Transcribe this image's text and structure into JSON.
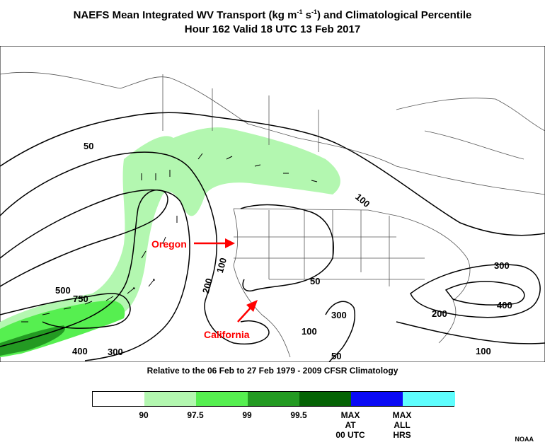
{
  "title_line1": "NAEFS Mean Integrated WV Transport (kg m",
  "title_sup1": "-1",
  "title_mid": " s",
  "title_sup2": "-1",
  "title_end": ") and Climatological Percentile",
  "title_line2": "Hour 162 Valid 18 UTC 13 Feb 2017",
  "climatology_note": "Relative to the 06 Feb to 27 Feb 1979 - 2009 CFSR Climatology",
  "credit": "NOAA",
  "annotations": {
    "oregon": "Oregon",
    "california": "California"
  },
  "contour_labels": [
    "50",
    "100",
    "100",
    "100",
    "200",
    "200",
    "300",
    "300",
    "300",
    "400",
    "400",
    "500",
    "750",
    "50",
    "100",
    "50"
  ],
  "legend": {
    "colors": [
      "#ffffff",
      "#b3f7b0",
      "#56ef50",
      "#239a22",
      "#056305",
      "#0a0af5",
      "#5efdfd"
    ],
    "labels": [
      "90",
      "97.5",
      "99",
      "99.5",
      "MAX\nAT\n00 UTC",
      "MAX\nALL\nHRS"
    ]
  },
  "colors": {
    "annotation": "#ff0000",
    "contour": "#000000",
    "border": "#555555"
  }
}
